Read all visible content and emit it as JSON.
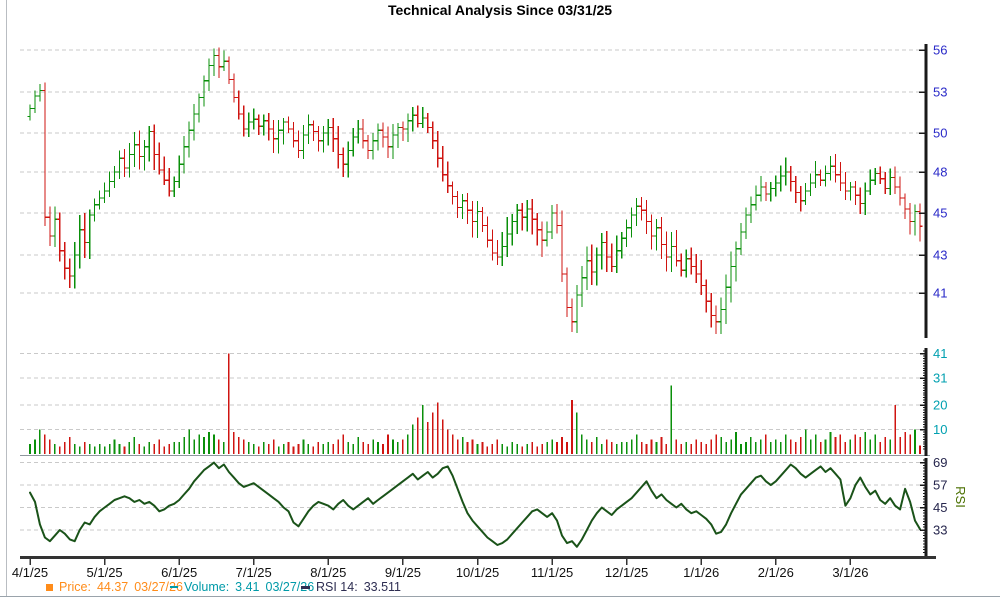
{
  "title": "Technical Analysis Since 03/31/25",
  "colors": {
    "up": "#0a8f0a",
    "down": "#cf1410",
    "rsi_line": "#1a5319",
    "price_axis_label": "#2a2ac8",
    "volume_axis_label": "#00a0b0",
    "rsi_axis_label": "#26264d",
    "rsi_side_label": "#4a7000",
    "gridline": "#c9c9c9",
    "axis": "#1a1a1a",
    "x_label": "#111111",
    "legend_price": "#ff8c1a",
    "legend_volume": "#009aa8",
    "legend_rsi": "#2e2e52"
  },
  "legend": {
    "price": {
      "name": "Price:",
      "value": "44.37",
      "date": "03/27/26"
    },
    "volume": {
      "name": "Volume:",
      "value": "3.41",
      "date": "03/27/26"
    },
    "rsi": {
      "name": "RSI 14:",
      "value": "33.511"
    }
  },
  "chart_data": {
    "type": "ohlc+bar+line",
    "x_axis": {
      "labels": [
        "4/1/25",
        "5/1/25",
        "6/1/25",
        "7/1/25",
        "8/1/25",
        "9/1/25",
        "10/1/25",
        "11/1/25",
        "12/1/25",
        "1/1/26",
        "2/1/26",
        "3/1/26"
      ],
      "points_per_month": 15
    },
    "price_panel": {
      "type": "ohlc",
      "ylabel_ticks": [
        56,
        53,
        50,
        48,
        45,
        43,
        41
      ],
      "scale": "log-like",
      "closes": [
        51.8,
        52.7,
        53.1,
        44.8,
        43.9,
        44.7,
        43.2,
        42.3,
        41.9,
        43.0,
        44.2,
        43.6,
        44.9,
        45.6,
        46.1,
        46.6,
        47.3,
        48.0,
        48.7,
        48.2,
        48.9,
        49.4,
        48.8,
        49.3,
        50.1,
        48.9,
        48.1,
        47.4,
        46.6,
        47.3,
        48.4,
        49.3,
        50.2,
        51.4,
        52.6,
        53.8,
        54.9,
        55.6,
        54.8,
        55.2,
        53.9,
        52.6,
        51.4,
        50.3,
        50.8,
        51.0,
        50.5,
        50.9,
        50.3,
        49.7,
        50.2,
        50.8,
        50.3,
        49.6,
        49.1,
        49.9,
        50.6,
        50.1,
        49.6,
        50.0,
        50.4,
        49.7,
        48.9,
        48.4,
        49.1,
        49.8,
        50.3,
        49.6,
        49.1,
        49.6,
        50.2,
        49.8,
        49.3,
        49.9,
        50.4,
        50.3,
        50.9,
        51.3,
        50.7,
        51.1,
        50.4,
        49.6,
        48.7,
        47.8,
        47.0,
        46.2,
        45.4,
        45.9,
        45.2,
        44.6,
        45.1,
        44.4,
        43.7,
        43.1,
        42.9,
        43.4,
        44.0,
        44.6,
        45.2,
        44.8,
        45.3,
        44.7,
        44.2,
        43.7,
        44.1,
        45.0,
        44.4,
        42.0,
        40.3,
        39.6,
        40.9,
        41.8,
        42.7,
        42.1,
        43.0,
        43.6,
        42.9,
        42.4,
        43.2,
        43.8,
        44.3,
        44.9,
        45.5,
        45.2,
        44.6,
        43.9,
        44.3,
        43.5,
        42.9,
        43.4,
        42.7,
        42.2,
        42.8,
        42.4,
        42.0,
        41.4,
        40.6,
        39.9,
        39.6,
        40.2,
        41.3,
        42.4,
        43.3,
        44.1,
        44.9,
        45.6,
        46.3,
        46.9,
        46.4,
        46.8,
        47.2,
        47.7,
        48.0,
        47.3,
        46.5,
        45.9,
        46.6,
        47.2,
        47.8,
        47.4,
        47.9,
        48.3,
        47.8,
        47.2,
        46.6,
        46.9,
        46.3,
        45.7,
        46.6,
        47.4,
        47.9,
        47.5,
        46.8,
        47.6,
        46.9,
        46.1,
        45.3,
        44.6,
        45.1,
        44.37
      ],
      "last_close": 44.37,
      "last_date": "03/27/26"
    },
    "volume_panel": {
      "type": "bar",
      "ylabel_ticks": [
        41,
        31,
        20,
        10
      ],
      "values": [
        4,
        6,
        10,
        8,
        6,
        4,
        3,
        5,
        7,
        4,
        3,
        5,
        4,
        3,
        4,
        3,
        4,
        6,
        4,
        3,
        5,
        7,
        4,
        3,
        5,
        4,
        6,
        3,
        4,
        5,
        5,
        7,
        10,
        6,
        8,
        7,
        9,
        8,
        6,
        5,
        41,
        9,
        7,
        6,
        5,
        4,
        3,
        5,
        4,
        6,
        3,
        4,
        5,
        3,
        4,
        6,
        4,
        3,
        5,
        4,
        5,
        4,
        6,
        8,
        5,
        4,
        7,
        5,
        4,
        6,
        5,
        4,
        8,
        6,
        5,
        6,
        8,
        12,
        15,
        20,
        13,
        17,
        21,
        14,
        10,
        8,
        6,
        7,
        5,
        6,
        4,
        5,
        3,
        4,
        6,
        4,
        3,
        5,
        4,
        3,
        4,
        5,
        3,
        4,
        5,
        6,
        5,
        7,
        5,
        22,
        17,
        8,
        6,
        5,
        7,
        4,
        6,
        5,
        4,
        5,
        5,
        6,
        8,
        5,
        4,
        6,
        5,
        7,
        4,
        28,
        6,
        4,
        5,
        4,
        6,
        5,
        4,
        6,
        8,
        7,
        5,
        6,
        9,
        4,
        5,
        7,
        5,
        6,
        8,
        5,
        6,
        5,
        8,
        6,
        5,
        7,
        10,
        6,
        8,
        5,
        6,
        9,
        7,
        8,
        5,
        6,
        8,
        7,
        9,
        6,
        8,
        5,
        7,
        6,
        20,
        7,
        9,
        8,
        10,
        3.41
      ],
      "last_value": 3.41,
      "last_date": "03/27/26"
    },
    "rsi_panel": {
      "type": "line",
      "axis_side_label": "RSI",
      "ylabel_ticks": [
        69,
        57,
        45,
        33
      ],
      "values": [
        53,
        48,
        36,
        29,
        27,
        30,
        33,
        31,
        28,
        27,
        33,
        37,
        36,
        40,
        43,
        45,
        47,
        49,
        50,
        51,
        50,
        48,
        49,
        47,
        48,
        46,
        43,
        44,
        46,
        47,
        49,
        52,
        55,
        59,
        62,
        65,
        67,
        69,
        66,
        68,
        64,
        61,
        58,
        56,
        57,
        58,
        56,
        54,
        52,
        50,
        48,
        45,
        43,
        37,
        35,
        39,
        43,
        46,
        48,
        47,
        46,
        44,
        47,
        49,
        46,
        44,
        46,
        48,
        50,
        47,
        49,
        51,
        53,
        55,
        57,
        59,
        61,
        63,
        60,
        62,
        64,
        61,
        63,
        66,
        67,
        62,
        55,
        48,
        42,
        38,
        35,
        32,
        29,
        27,
        25,
        26,
        28,
        31,
        34,
        37,
        40,
        43,
        44,
        42,
        40,
        42,
        38,
        30,
        26,
        27,
        24,
        28,
        33,
        38,
        42,
        45,
        43,
        41,
        44,
        46,
        48,
        50,
        53,
        56,
        59,
        54,
        50,
        52,
        49,
        47,
        45,
        47,
        44,
        42,
        43,
        41,
        39,
        36,
        31,
        32,
        36,
        42,
        47,
        52,
        55,
        58,
        61,
        62,
        59,
        57,
        59,
        62,
        65,
        68,
        66,
        63,
        61,
        63,
        65,
        67,
        64,
        66,
        63,
        60,
        46,
        50,
        57,
        61,
        56,
        52,
        54,
        49,
        47,
        50,
        46,
        44,
        55,
        48,
        38,
        33.5
      ],
      "period": 14,
      "last_value": 33.511
    }
  }
}
